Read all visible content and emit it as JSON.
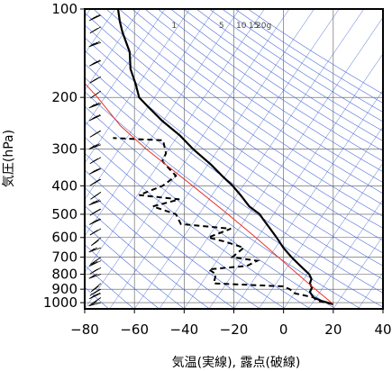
{
  "chart_data": {
    "type": "line",
    "title": "",
    "xlabel": "気温(実線), 露点(破線)",
    "ylabel": "気圧(hPa)",
    "xlim": [
      -80,
      40
    ],
    "ylim": [
      1050,
      100
    ],
    "y_scale": "log",
    "x_ticks": [
      "−80",
      "−60",
      "−40",
      "−20",
      "0",
      "20",
      "40"
    ],
    "x_tick_values": [
      -80,
      -60,
      -40,
      -20,
      0,
      20,
      40
    ],
    "y_ticks": [
      "100",
      "200",
      "300",
      "400",
      "500",
      "600",
      "700",
      "800",
      "900",
      "1000"
    ],
    "y_tick_values": [
      100,
      200,
      300,
      400,
      500,
      600,
      700,
      800,
      900,
      1000
    ],
    "mixing_ratio_labels": [
      "1",
      "5",
      "10",
      "15",
      "20g"
    ],
    "mixing_ratio_values": [
      1,
      5,
      10,
      15,
      20
    ],
    "series": [
      {
        "style": "solid",
        "color": "#000000",
        "points": [
          {
            "p": 1012,
            "t": 19.9
          },
          {
            "p": 985,
            "t": 15
          },
          {
            "p": 960,
            "t": 12
          },
          {
            "p": 920,
            "t": 10.6
          },
          {
            "p": 890,
            "t": 11.4
          },
          {
            "p": 860,
            "t": 10.6
          },
          {
            "p": 830,
            "t": 11.2
          },
          {
            "p": 800,
            "t": 10.3
          },
          {
            "p": 750,
            "t": 6.8
          },
          {
            "p": 700,
            "t": 3.2
          },
          {
            "p": 650,
            "t": -0.1
          },
          {
            "p": 600,
            "t": -2.8
          },
          {
            "p": 560,
            "t": -5.4
          },
          {
            "p": 520,
            "t": -8.2
          },
          {
            "p": 500,
            "t": -9.6
          },
          {
            "p": 470,
            "t": -13.8
          },
          {
            "p": 430,
            "t": -17.3
          },
          {
            "p": 400,
            "t": -20.5
          },
          {
            "p": 370,
            "t": -24.7
          },
          {
            "p": 340,
            "t": -29
          },
          {
            "p": 300,
            "t": -36.4
          },
          {
            "p": 270,
            "t": -41.6
          },
          {
            "p": 240,
            "t": -48.9
          },
          {
            "p": 215,
            "t": -54.6
          },
          {
            "p": 200,
            "t": -58.1
          },
          {
            "p": 180,
            "t": -59.5
          },
          {
            "p": 160,
            "t": -61.6
          },
          {
            "p": 140,
            "t": -61.9
          },
          {
            "p": 120,
            "t": -64.8
          },
          {
            "p": 110,
            "t": -65.9
          },
          {
            "p": 100,
            "t": -66.6
          }
        ]
      },
      {
        "style": "dashed",
        "color": "#000000",
        "points": [
          {
            "p": 1012,
            "t": 19.9
          },
          {
            "p": 985,
            "t": 13.3
          },
          {
            "p": 960,
            "t": 12.1
          },
          {
            "p": 930,
            "t": 4.6
          },
          {
            "p": 900,
            "t": 2.5
          },
          {
            "p": 880,
            "t": -0.3
          },
          {
            "p": 860,
            "t": -28.1
          },
          {
            "p": 800,
            "t": -27.2
          },
          {
            "p": 770,
            "t": -30.1
          },
          {
            "p": 750,
            "t": -14.7
          },
          {
            "p": 720,
            "t": -10.6
          },
          {
            "p": 700,
            "t": -20.6
          },
          {
            "p": 650,
            "t": -16
          },
          {
            "p": 620,
            "t": -23.5
          },
          {
            "p": 600,
            "t": -30.3
          },
          {
            "p": 560,
            "t": -21.2
          },
          {
            "p": 540,
            "t": -41.3
          },
          {
            "p": 500,
            "t": -43.3
          },
          {
            "p": 470,
            "t": -52.6
          },
          {
            "p": 445,
            "t": -41.9
          },
          {
            "p": 430,
            "t": -58.1
          },
          {
            "p": 400,
            "t": -48.6
          },
          {
            "p": 370,
            "t": -43.3
          },
          {
            "p": 330,
            "t": -48.8
          },
          {
            "p": 310,
            "t": -47.3
          },
          {
            "p": 280,
            "t": -48.5
          },
          {
            "p": 275,
            "t": -68.6
          }
        ]
      },
      {
        "style": "parcel",
        "color": "#e8352c",
        "points": [
          {
            "p": 1012,
            "t": 20
          },
          {
            "p": 900,
            "t": 12.8
          },
          {
            "p": 800,
            "t": 5.7
          },
          {
            "p": 700,
            "t": -2.1
          },
          {
            "p": 600,
            "t": -11.2
          },
          {
            "p": 500,
            "t": -22.4
          },
          {
            "p": 400,
            "t": -36.6
          },
          {
            "p": 300,
            "t": -55.2
          },
          {
            "p": 250,
            "t": -65.6
          },
          {
            "p": 200,
            "t": -74.8
          },
          {
            "p": 180,
            "t": -79.8
          }
        ]
      }
    ],
    "grid": true,
    "legend": "none"
  },
  "colors": {
    "isotherm": "#4a6bd8",
    "axis": "#000000",
    "parcel": "#e8352c",
    "profile": "#000000"
  }
}
